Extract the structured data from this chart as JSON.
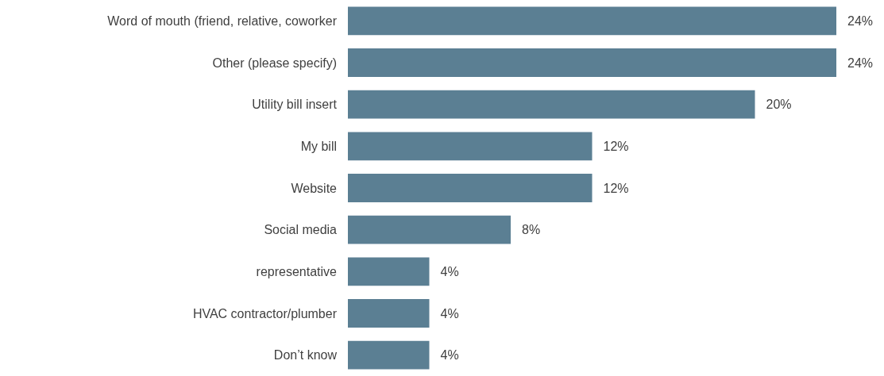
{
  "chart_data": {
    "type": "bar",
    "orientation": "horizontal",
    "categories": [
      "Word of mouth (friend, relative, coworker",
      "Other (please specify)",
      "Utility bill insert",
      "My bill",
      "Website",
      "Social media",
      "representative",
      "HVAC contractor/plumber",
      "Don’t know"
    ],
    "values": [
      24,
      24,
      20,
      12,
      12,
      8,
      4,
      4,
      4
    ],
    "value_labels": [
      "24%",
      "24%",
      "20%",
      "12%",
      "12%",
      "8%",
      "4%",
      "4%",
      "4%"
    ],
    "color": "#5b7f93"
  }
}
